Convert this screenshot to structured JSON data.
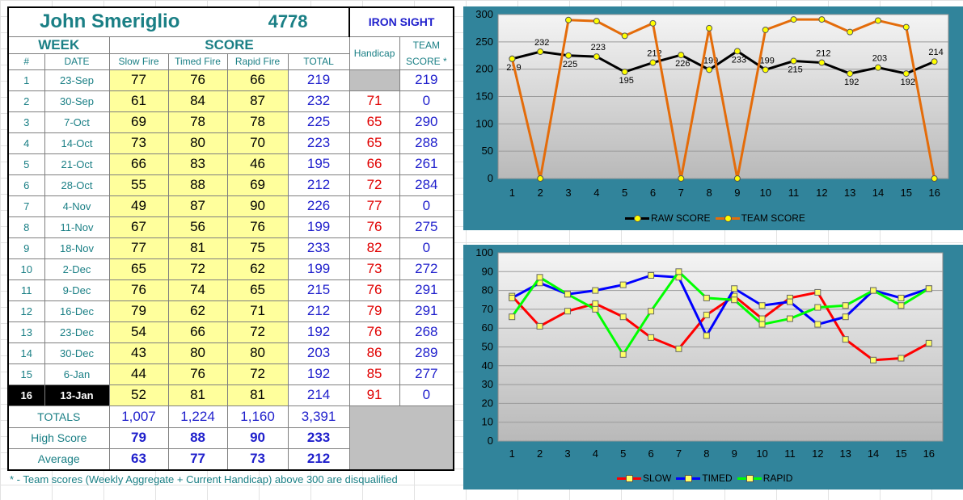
{
  "header": {
    "shooter_name": "John Smeriglio",
    "shooter_id": "4778",
    "team_name": "IRON SIGHT",
    "week_label": "WEEK",
    "score_label": "SCORE",
    "handicap_label": "Handicap",
    "team_score_label_1": "TEAM",
    "team_score_label_2": "SCORE *",
    "col_num": "#",
    "col_date": "DATE",
    "col_slow": "Slow Fire",
    "col_timed": "Timed Fire",
    "col_rapid": "Rapid Fire",
    "col_total": "TOTAL"
  },
  "rows": [
    {
      "num": "1",
      "date": "23-Sep",
      "slow": "77",
      "timed": "76",
      "rapid": "66",
      "total": "219",
      "handicap": "",
      "team": "219"
    },
    {
      "num": "2",
      "date": "30-Sep",
      "slow": "61",
      "timed": "84",
      "rapid": "87",
      "total": "232",
      "handicap": "71",
      "team": "0"
    },
    {
      "num": "3",
      "date": "7-Oct",
      "slow": "69",
      "timed": "78",
      "rapid": "78",
      "total": "225",
      "handicap": "65",
      "team": "290"
    },
    {
      "num": "4",
      "date": "14-Oct",
      "slow": "73",
      "timed": "80",
      "rapid": "70",
      "total": "223",
      "handicap": "65",
      "team": "288"
    },
    {
      "num": "5",
      "date": "21-Oct",
      "slow": "66",
      "timed": "83",
      "rapid": "46",
      "total": "195",
      "handicap": "66",
      "team": "261"
    },
    {
      "num": "6",
      "date": "28-Oct",
      "slow": "55",
      "timed": "88",
      "rapid": "69",
      "total": "212",
      "handicap": "72",
      "team": "284"
    },
    {
      "num": "7",
      "date": "4-Nov",
      "slow": "49",
      "timed": "87",
      "rapid": "90",
      "total": "226",
      "handicap": "77",
      "team": "0"
    },
    {
      "num": "8",
      "date": "11-Nov",
      "slow": "67",
      "timed": "56",
      "rapid": "76",
      "total": "199",
      "handicap": "76",
      "team": "275"
    },
    {
      "num": "9",
      "date": "18-Nov",
      "slow": "77",
      "timed": "81",
      "rapid": "75",
      "total": "233",
      "handicap": "82",
      "team": "0"
    },
    {
      "num": "10",
      "date": "2-Dec",
      "slow": "65",
      "timed": "72",
      "rapid": "62",
      "total": "199",
      "handicap": "73",
      "team": "272"
    },
    {
      "num": "11",
      "date": "9-Dec",
      "slow": "76",
      "timed": "74",
      "rapid": "65",
      "total": "215",
      "handicap": "76",
      "team": "291"
    },
    {
      "num": "12",
      "date": "16-Dec",
      "slow": "79",
      "timed": "62",
      "rapid": "71",
      "total": "212",
      "handicap": "79",
      "team": "291"
    },
    {
      "num": "13",
      "date": "23-Dec",
      "slow": "54",
      "timed": "66",
      "rapid": "72",
      "total": "192",
      "handicap": "76",
      "team": "268"
    },
    {
      "num": "14",
      "date": "30-Dec",
      "slow": "43",
      "timed": "80",
      "rapid": "80",
      "total": "203",
      "handicap": "86",
      "team": "289"
    },
    {
      "num": "15",
      "date": "6-Jan",
      "slow": "44",
      "timed": "76",
      "rapid": "72",
      "total": "192",
      "handicap": "85",
      "team": "277"
    },
    {
      "num": "16",
      "date": "13-Jan",
      "slow": "52",
      "timed": "81",
      "rapid": "81",
      "total": "214",
      "handicap": "91",
      "team": "0"
    }
  ],
  "current_row_index": 15,
  "summary": {
    "totals_label": "TOTALS",
    "totals": [
      "1,007",
      "1,224",
      "1,160",
      "3,391"
    ],
    "high_label": "High Score",
    "high": [
      "79",
      "88",
      "90",
      "233"
    ],
    "avg_label": "Average",
    "avg": [
      "63",
      "77",
      "73",
      "212"
    ]
  },
  "footnote": "* - Team scores (Weekly Aggregate + Current Handicap) above 300 are disqualified",
  "chart_data": [
    {
      "type": "line",
      "x": [
        1,
        2,
        3,
        4,
        5,
        6,
        7,
        8,
        9,
        10,
        11,
        12,
        13,
        14,
        15,
        16
      ],
      "ylim": [
        0,
        300
      ],
      "yticks": [
        0,
        50,
        100,
        150,
        200,
        250,
        300
      ],
      "grid": true,
      "legend_position": "bottom",
      "series": [
        {
          "name": "RAW SCORE",
          "color": "#000000",
          "values": [
            219,
            232,
            225,
            223,
            195,
            212,
            226,
            199,
            233,
            199,
            215,
            212,
            192,
            203,
            192,
            214
          ],
          "data_labels": true
        },
        {
          "name": "TEAM SCORE",
          "color": "#e46c0a",
          "values": [
            219,
            0,
            290,
            288,
            261,
            284,
            0,
            275,
            0,
            272,
            291,
            291,
            268,
            289,
            277,
            0
          ],
          "data_labels": false
        }
      ]
    },
    {
      "type": "line",
      "x": [
        1,
        2,
        3,
        4,
        5,
        6,
        7,
        8,
        9,
        10,
        11,
        12,
        13,
        14,
        15,
        16
      ],
      "ylim": [
        0,
        100
      ],
      "yticks": [
        0,
        10,
        20,
        30,
        40,
        50,
        60,
        70,
        80,
        90,
        100
      ],
      "grid": true,
      "legend_position": "bottom",
      "series": [
        {
          "name": "SLOW",
          "color": "#ff0000",
          "values": [
            77,
            61,
            69,
            73,
            66,
            55,
            49,
            67,
            77,
            65,
            76,
            79,
            54,
            43,
            44,
            52
          ]
        },
        {
          "name": "TIMED",
          "color": "#0000ff",
          "values": [
            76,
            84,
            78,
            80,
            83,
            88,
            87,
            56,
            81,
            72,
            74,
            62,
            66,
            80,
            76,
            81
          ]
        },
        {
          "name": "RAPID",
          "color": "#00ff00",
          "values": [
            66,
            87,
            78,
            70,
            46,
            69,
            90,
            76,
            75,
            62,
            65,
            71,
            72,
            80,
            72,
            81
          ]
        }
      ]
    }
  ]
}
